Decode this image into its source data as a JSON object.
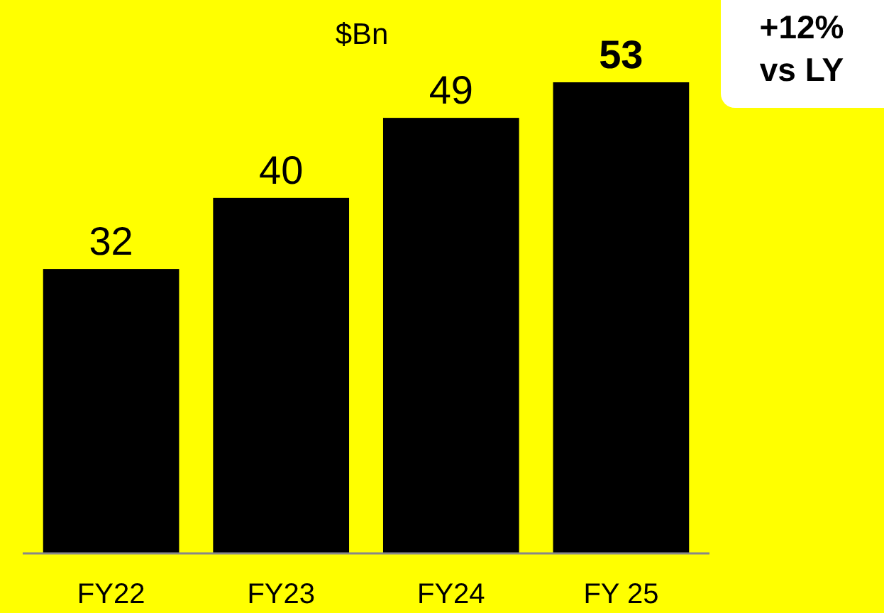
{
  "chart_data": {
    "type": "bar",
    "ylabel": "$Bn",
    "categories": [
      "FY22",
      "FY23",
      "FY24",
      "FY 25"
    ],
    "values": [
      32,
      40,
      49,
      53
    ],
    "color": "#000000",
    "data_labels": true,
    "annotations": [
      "+12%\nvs LY"
    ]
  }
}
